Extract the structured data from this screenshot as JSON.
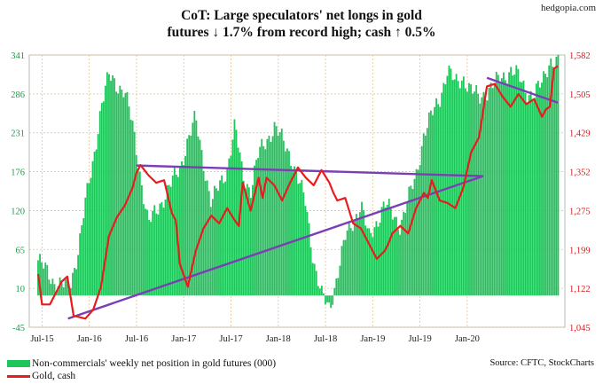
{
  "brand": "hedgopia.com",
  "title_line1": "CoT: Large speculators' net longs in gold",
  "title_line2": "futures ↓ 1.7% from record high; cash ↑ 0.5%",
  "legend": {
    "bars_label": "Non-commercials' weekly net position in gold futures (000)",
    "line_label": "Gold, cash"
  },
  "source": "Source: CFTC, StockCharts",
  "colors": {
    "bars": "#1fc45a",
    "gold_line": "#e81c1c",
    "trendline": "#7b3fb5",
    "grid": "#e2c28a"
  },
  "chart_data": {
    "type": "bar",
    "x_tick_labels": [
      "Jul-15",
      "Jan-16",
      "Jul-16",
      "Jan-17",
      "Jul-17",
      "Jan-18",
      "Jul-18",
      "Jan-19",
      "Jul-19",
      "Jan-20"
    ],
    "left_axis": {
      "ticks": [
        "341",
        "286",
        "231",
        "176",
        "120",
        "65",
        "10",
        "-45"
      ],
      "ylim": [
        -45,
        341
      ]
    },
    "right_axis": {
      "ticks": [
        "1,582",
        "1,505",
        "1,429",
        "1,352",
        "1,275",
        "1,199",
        "1,122",
        "1,045"
      ],
      "ylim": [
        1045,
        1582
      ]
    },
    "grid": true,
    "bars_series": {
      "name": "Non-commercials' weekly net position in gold futures (000)",
      "axis": "left",
      "period_months": [
        0,
        2,
        4,
        5,
        6,
        7,
        8,
        9,
        10,
        11,
        12,
        13,
        14,
        16,
        18,
        19,
        20,
        22,
        24,
        25,
        26,
        27,
        28,
        30,
        32,
        34,
        35,
        36,
        37,
        38,
        39,
        41,
        42,
        44,
        46,
        48,
        49,
        50,
        51,
        52,
        53,
        54,
        55,
        56,
        58,
        60,
        61,
        62,
        63,
        64,
        65,
        66
      ],
      "anchors": [
        50,
        20,
        10,
        60,
        130,
        190,
        270,
        310,
        300,
        290,
        240,
        170,
        100,
        140,
        180,
        220,
        250,
        130,
        180,
        240,
        170,
        150,
        200,
        240,
        200,
        130,
        50,
        0,
        -20,
        30,
        80,
        130,
        80,
        130,
        100,
        170,
        230,
        255,
        280,
        320,
        300,
        310,
        290,
        280,
        300,
        320,
        310,
        290,
        285,
        300,
        335,
        330
      ]
    },
    "gold_series": {
      "name": "Gold, cash",
      "axis": "right",
      "months": [
        0,
        0.5,
        1.5,
        3,
        3.7,
        4.5,
        6,
        7,
        8,
        9,
        10,
        11,
        12,
        12.5,
        13,
        14,
        15,
        16,
        17,
        17.5,
        18,
        19,
        20,
        21,
        22,
        23,
        24,
        25,
        25.5,
        26,
        27,
        28,
        28.5,
        29,
        30,
        31,
        32,
        33,
        34,
        35,
        36,
        37,
        37.5,
        38,
        39,
        40,
        41,
        41.5,
        42,
        43,
        44,
        44.5,
        45,
        46,
        47,
        48,
        49,
        49.5,
        50,
        51,
        52,
        53,
        54,
        55,
        56,
        57,
        58,
        59,
        60,
        61,
        62,
        63,
        64,
        64.5,
        65,
        65.5,
        66
      ],
      "values": [
        1150,
        1090,
        1090,
        1135,
        1145,
        1068,
        1062,
        1080,
        1125,
        1225,
        1262,
        1285,
        1320,
        1350,
        1365,
        1345,
        1330,
        1335,
        1270,
        1255,
        1170,
        1125,
        1195,
        1240,
        1265,
        1250,
        1280,
        1255,
        1245,
        1330,
        1275,
        1340,
        1300,
        1340,
        1325,
        1295,
        1330,
        1360,
        1340,
        1325,
        1355,
        1330,
        1310,
        1295,
        1300,
        1250,
        1240,
        1225,
        1210,
        1180,
        1195,
        1210,
        1230,
        1245,
        1230,
        1280,
        1310,
        1300,
        1335,
        1295,
        1290,
        1280,
        1320,
        1390,
        1420,
        1520,
        1525,
        1500,
        1480,
        1505,
        1485,
        1495,
        1460,
        1475,
        1480,
        1555,
        1560
      ]
    },
    "trendlines": [
      {
        "from": {
          "month": 12.5,
          "gold": 1364
        },
        "to": {
          "month": 56.5,
          "gold": 1343
        }
      },
      {
        "from": {
          "month": 3.8,
          "gold": 1062
        },
        "to": {
          "month": 56.5,
          "gold": 1343
        }
      },
      {
        "from": {
          "month": 57,
          "gold": 1537
        },
        "to": {
          "month": 66,
          "gold": 1488
        }
      }
    ]
  }
}
